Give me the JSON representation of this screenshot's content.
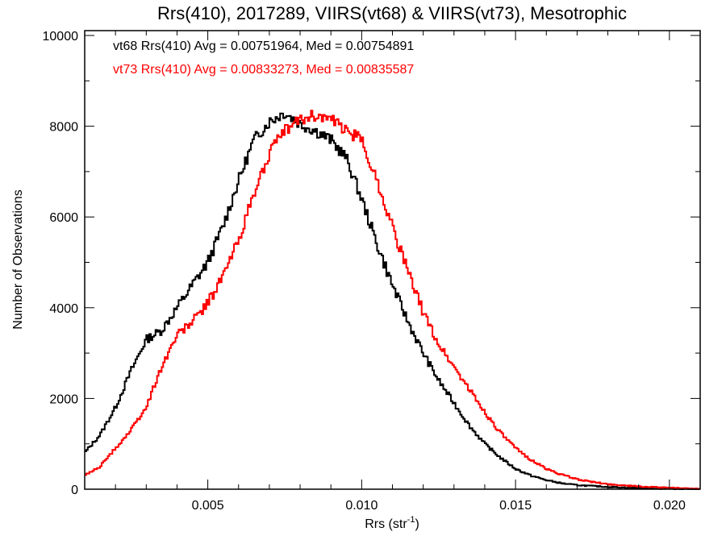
{
  "chart_data": {
    "type": "line",
    "title": "Rrs(410), 2017289, VIIRS(vt68) & VIIRS(vt73), Mesotrophic",
    "xlabel_main": "Rrs (str",
    "xlabel_sup": "-1",
    "xlabel_close": ")",
    "ylabel": "Number of Observations",
    "xlim": [
      0.001,
      0.021
    ],
    "ylim": [
      0,
      10000
    ],
    "x_ticks": [
      0.005,
      0.01,
      0.015,
      0.02
    ],
    "x_tick_labels": [
      "0.005",
      "0.010",
      "0.015",
      "0.020"
    ],
    "y_ticks": [
      0,
      2000,
      4000,
      6000,
      8000,
      10000
    ],
    "y_tick_labels": [
      "0",
      "2000",
      "4000",
      "6000",
      "8000",
      "10000"
    ],
    "annotations": [
      {
        "text": "vt68 Rrs(410) Avg = 0.00751964, Med = 0.00754891",
        "color": "#000000"
      },
      {
        "text": "vt73 Rrs(410) Avg = 0.00833273, Med = 0.00835587",
        "color": "#ff0000"
      }
    ],
    "series": [
      {
        "color": "#000000",
        "x": [
          0.001,
          0.0015,
          0.002,
          0.0025,
          0.003,
          0.0035,
          0.004,
          0.0045,
          0.005,
          0.0055,
          0.006,
          0.0065,
          0.007,
          0.0075,
          0.008,
          0.0085,
          0.009,
          0.0095,
          0.01,
          0.0105,
          0.011,
          0.0115,
          0.012,
          0.0125,
          0.013,
          0.0135,
          0.014,
          0.0145,
          0.015,
          0.0155,
          0.016,
          0.0165,
          0.017,
          0.018,
          0.019,
          0.02,
          0.021
        ],
        "y": [
          800,
          1200,
          1800,
          2600,
          3300,
          3500,
          4000,
          4500,
          5000,
          5800,
          6800,
          7700,
          8100,
          8300,
          8050,
          7900,
          7700,
          7300,
          6400,
          5400,
          4500,
          3700,
          3000,
          2400,
          1900,
          1400,
          1000,
          700,
          450,
          300,
          200,
          130,
          90,
          50,
          25,
          10,
          5
        ]
      },
      {
        "color": "#ff0000",
        "x": [
          0.001,
          0.0015,
          0.002,
          0.0025,
          0.003,
          0.0035,
          0.004,
          0.0045,
          0.005,
          0.0055,
          0.006,
          0.0065,
          0.007,
          0.0075,
          0.008,
          0.0085,
          0.009,
          0.0095,
          0.01,
          0.0105,
          0.011,
          0.0115,
          0.012,
          0.0125,
          0.013,
          0.0135,
          0.014,
          0.0145,
          0.015,
          0.0155,
          0.016,
          0.0165,
          0.017,
          0.0175,
          0.018,
          0.019,
          0.02,
          0.021
        ],
        "y": [
          300,
          500,
          900,
          1300,
          1800,
          2700,
          3400,
          3700,
          4100,
          4700,
          5500,
          6500,
          7400,
          7900,
          8150,
          8250,
          8150,
          7900,
          7700,
          6800,
          5800,
          4800,
          3900,
          3200,
          2700,
          2200,
          1700,
          1250,
          900,
          650,
          450,
          320,
          220,
          160,
          110,
          60,
          30,
          10
        ]
      }
    ]
  }
}
